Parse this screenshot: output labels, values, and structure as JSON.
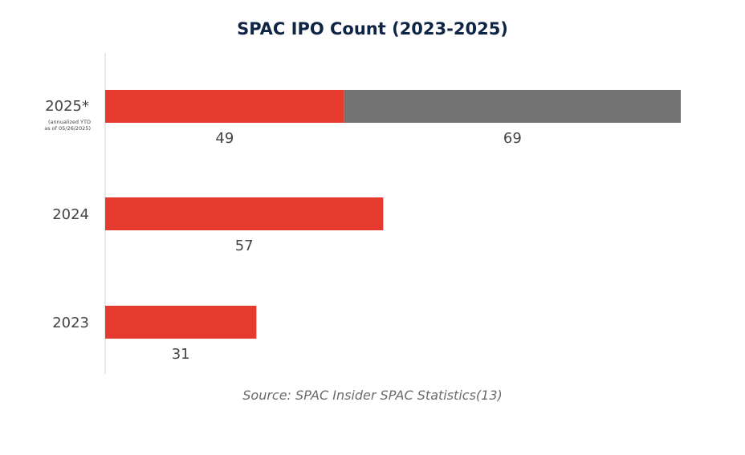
{
  "chart_data": {
    "type": "bar",
    "orientation": "horizontal",
    "stacked": true,
    "title": "SPAC IPO Count (2023-2025)",
    "categories": [
      "2025*",
      "2024",
      "2023"
    ],
    "category_notes": [
      "(annualized YTD as of 05/26/2025)",
      "",
      ""
    ],
    "series": [
      {
        "values": [
          49,
          57,
          31
        ],
        "color": "#e53b2f"
      },
      {
        "values": [
          69,
          null,
          null
        ],
        "color": "#737373"
      }
    ],
    "xlim": [
      0,
      118
    ],
    "grid": false,
    "legend": "none",
    "source": "Source: SPAC Insider SPAC Statistics(13)"
  }
}
